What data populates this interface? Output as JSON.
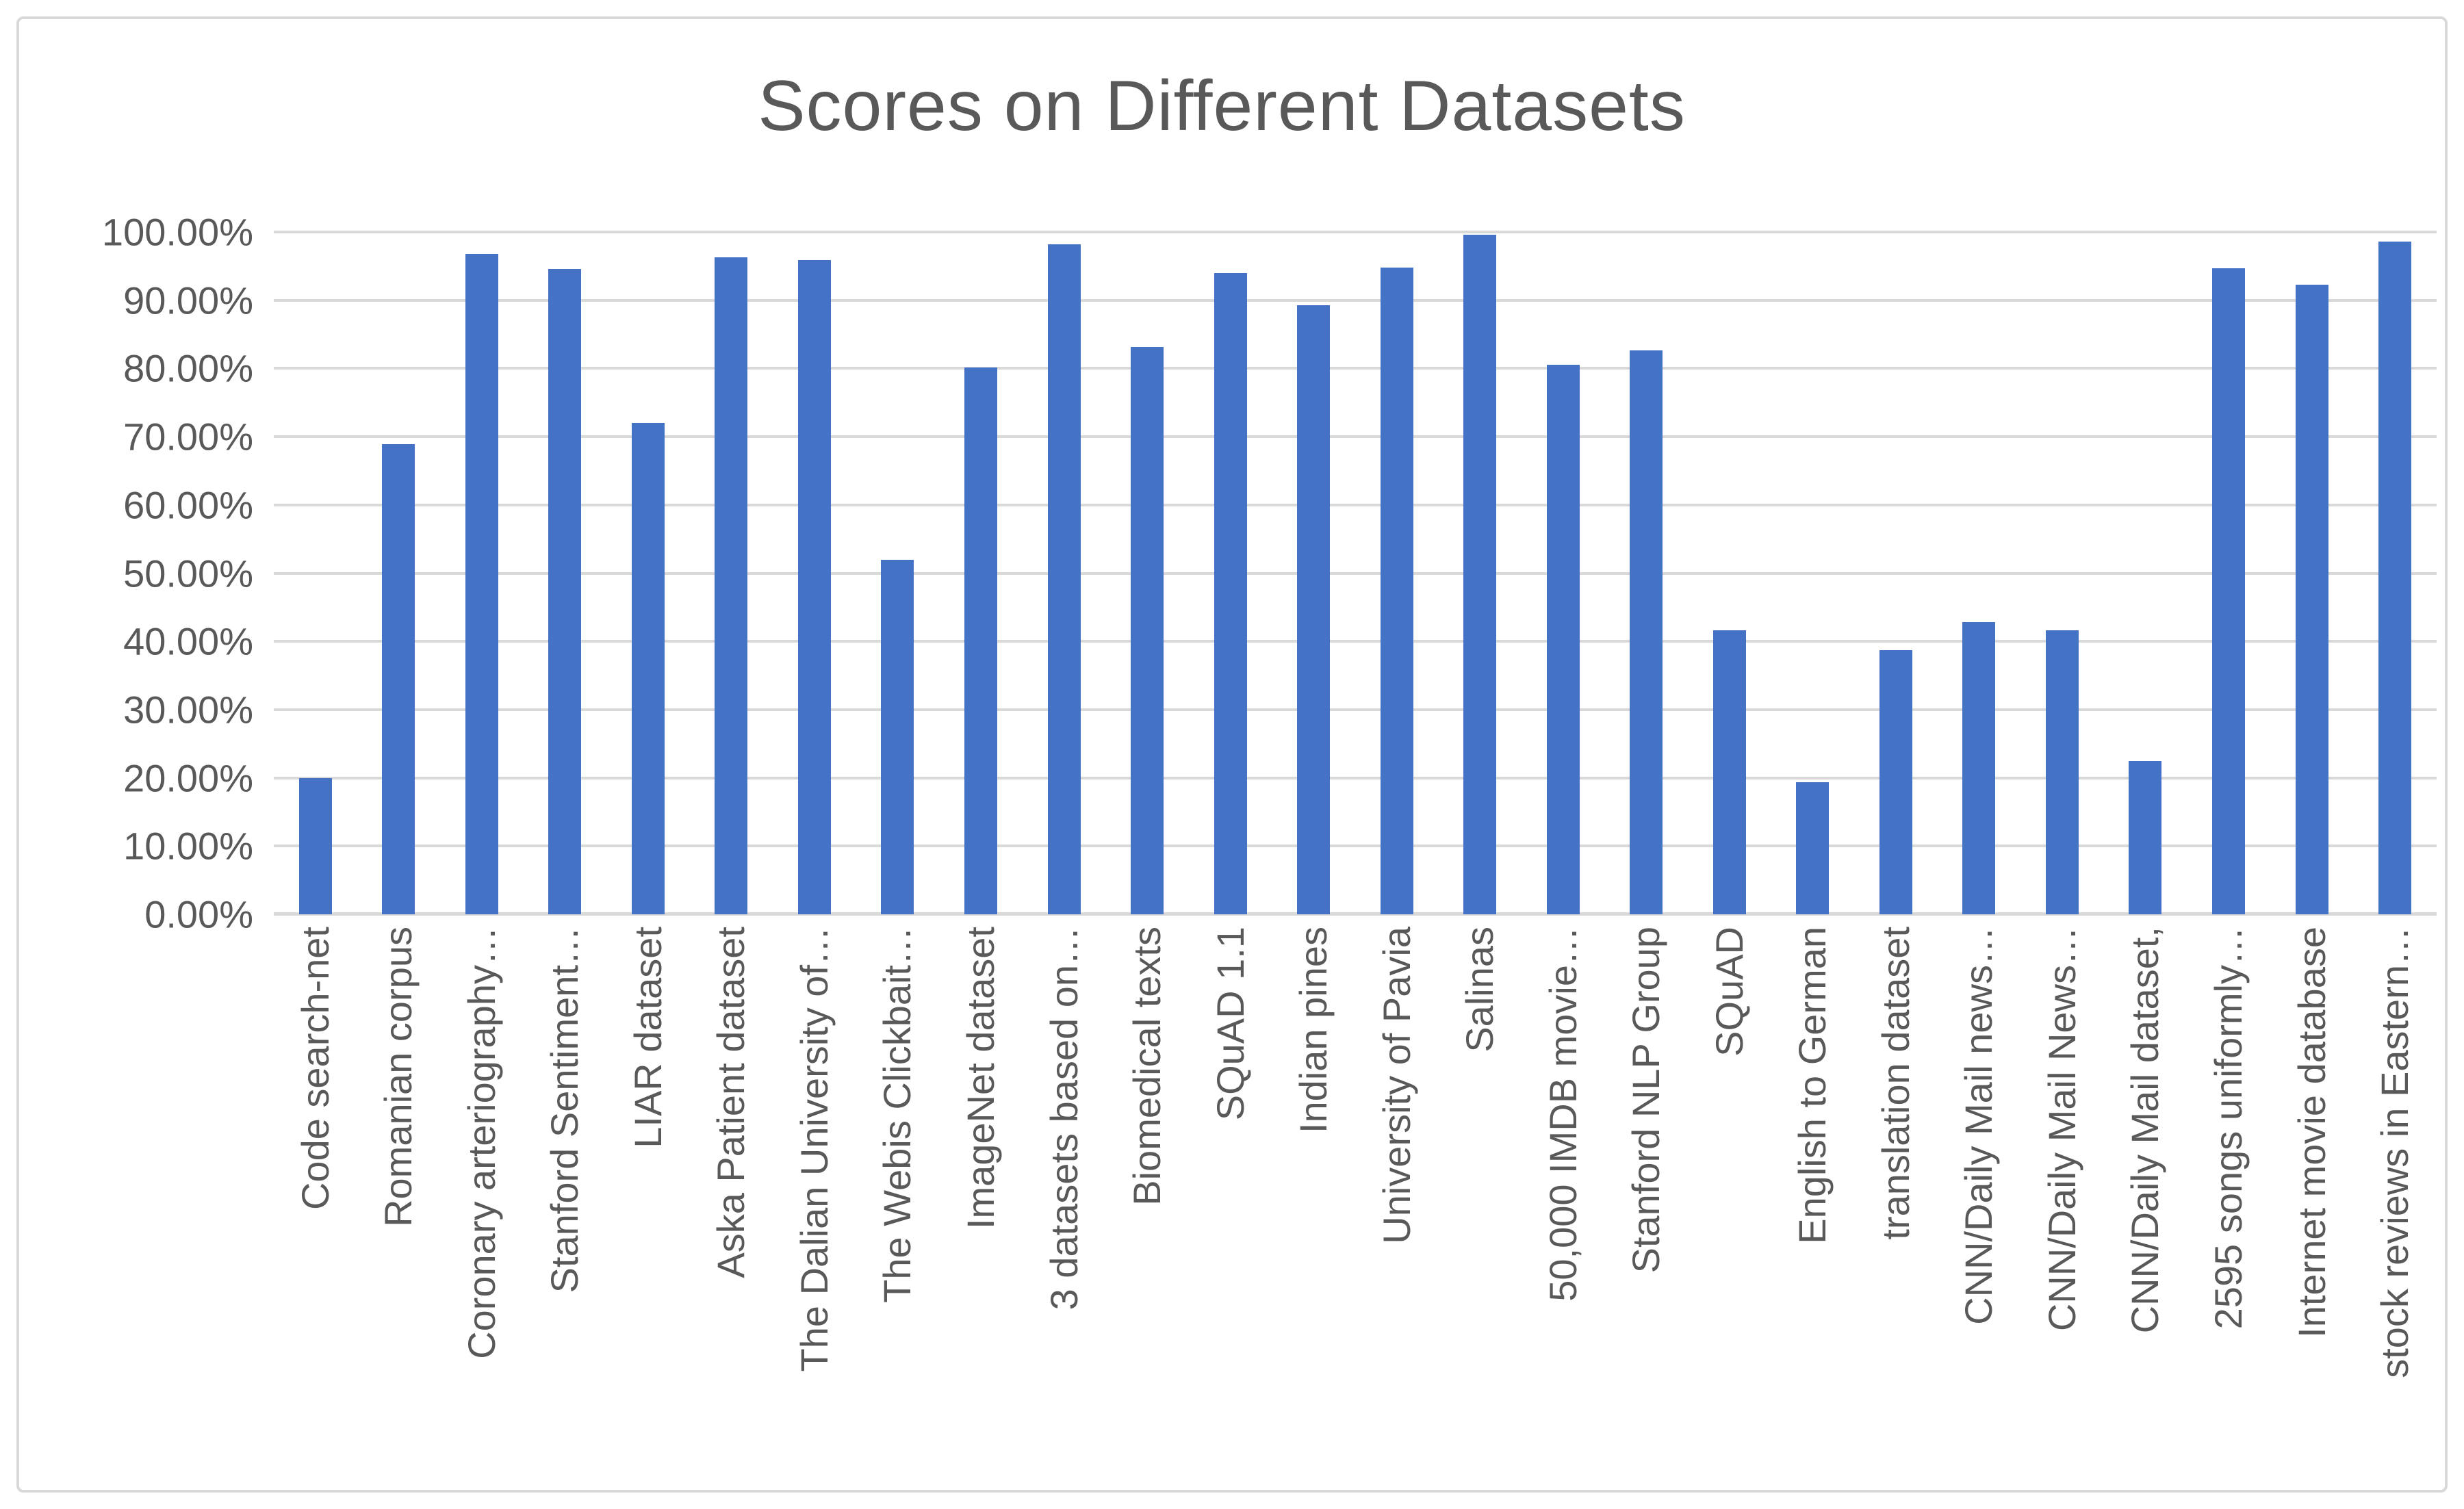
{
  "chart_data": {
    "type": "bar",
    "title": "Scores on Different Datasets",
    "xlabel": "",
    "ylabel": "",
    "ylim": [
      0,
      100
    ],
    "y_tick_step": 10,
    "grid": true,
    "legend": "none",
    "y_ticks": [
      "100.00%",
      "90.00%",
      "80.00%",
      "70.00%",
      "60.00%",
      "50.00%",
      "40.00%",
      "30.00%",
      "20.00%",
      "10.00%",
      "0.00%"
    ],
    "categories": [
      "Code search-net",
      "Romanian corpus",
      "Coronary arteriography…",
      "Stanford Sentiment…",
      "LIAR dataset",
      "Aska Patient dataset",
      "The Dalian University of…",
      "The Webis Clickbait…",
      "ImageNet dataset",
      "3 datasets based on…",
      "Biomedical texts",
      "SQuAD 1.1",
      "Indian pines",
      "University of Pavia",
      "Salinas",
      "50,000 IMDB movie…",
      "Stanford NLP Group",
      "SQuAD",
      "English to German",
      "translation dataset",
      "CNN/Daily Mail news…",
      "CNN/Daily Mail News…",
      "CNN/Daily Mail dataset,",
      "2595 songs uniformly…",
      "Internet movie database",
      "stock reviews in Eastern…"
    ],
    "values": [
      20.0,
      68.9,
      96.8,
      94.6,
      72.0,
      96.3,
      95.9,
      52.0,
      80.1,
      98.2,
      83.2,
      94.0,
      89.3,
      94.8,
      99.6,
      80.5,
      82.6,
      41.6,
      19.4,
      38.7,
      42.8,
      41.6,
      22.5,
      94.7,
      92.3,
      98.6
    ],
    "colors": {
      "bar": "#4472C4",
      "gridline": "#D9D9D9",
      "title_text": "#595959",
      "axis_text": "#595959",
      "background": "#FFFFFF",
      "frame_border": "#D9D9D9"
    }
  }
}
